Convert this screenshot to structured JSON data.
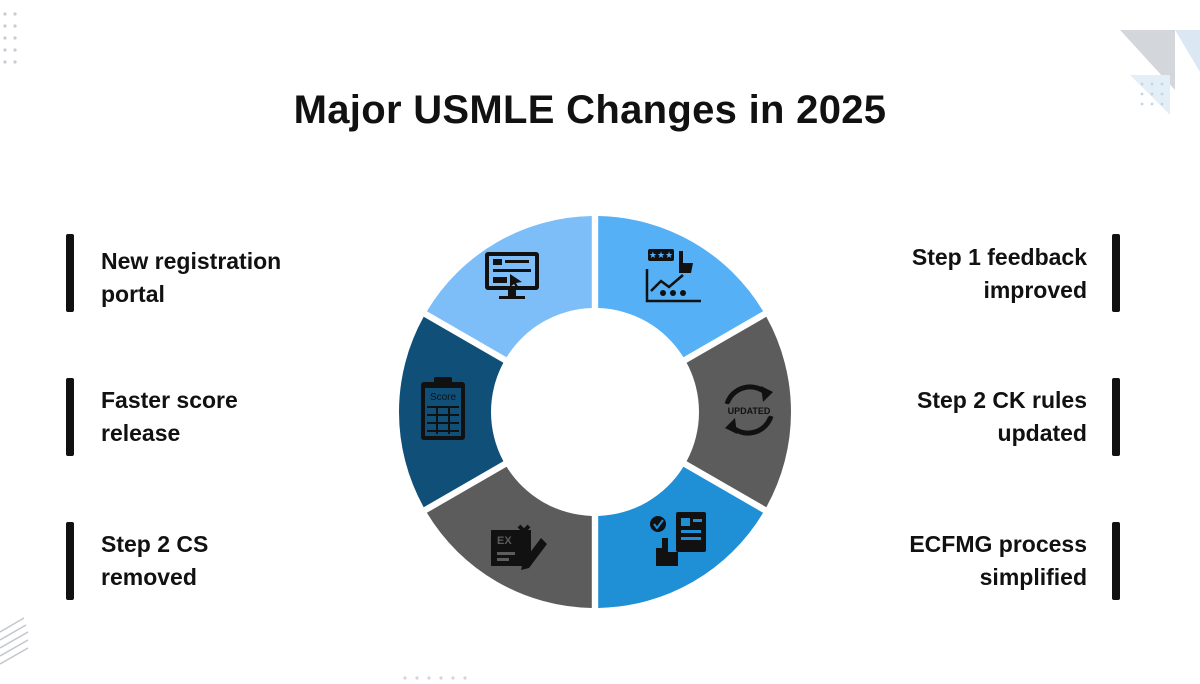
{
  "title": "Major USMLE Changes in 2025",
  "items": [
    {
      "side": "left",
      "lines": [
        "New registration",
        "portal"
      ],
      "color": "#7dbef8",
      "icon": "monitor-icon"
    },
    {
      "side": "left",
      "lines": [
        "Faster score",
        "release"
      ],
      "color": "#0f4f78",
      "icon": "score-clipboard-icon",
      "icon_text": "Score"
    },
    {
      "side": "left",
      "lines": [
        "Step 2 CS",
        "removed"
      ],
      "color": "#5c5c5c",
      "icon": "exam-edit-icon",
      "icon_text": "EX"
    },
    {
      "side": "right",
      "lines": [
        "Step 1 feedback",
        "improved"
      ],
      "color": "#56b0f5",
      "icon": "feedback-rating-icon"
    },
    {
      "side": "right",
      "lines": [
        "Step 2 CK rules",
        "updated"
      ],
      "color": "#5c5c5c",
      "icon": "updated-cycle-icon",
      "icon_text": "UPDATED"
    },
    {
      "side": "right",
      "lines": [
        "ECFMG process",
        "simplified"
      ],
      "color": "#1f8fd6",
      "icon": "touch-document-icon"
    }
  ]
}
